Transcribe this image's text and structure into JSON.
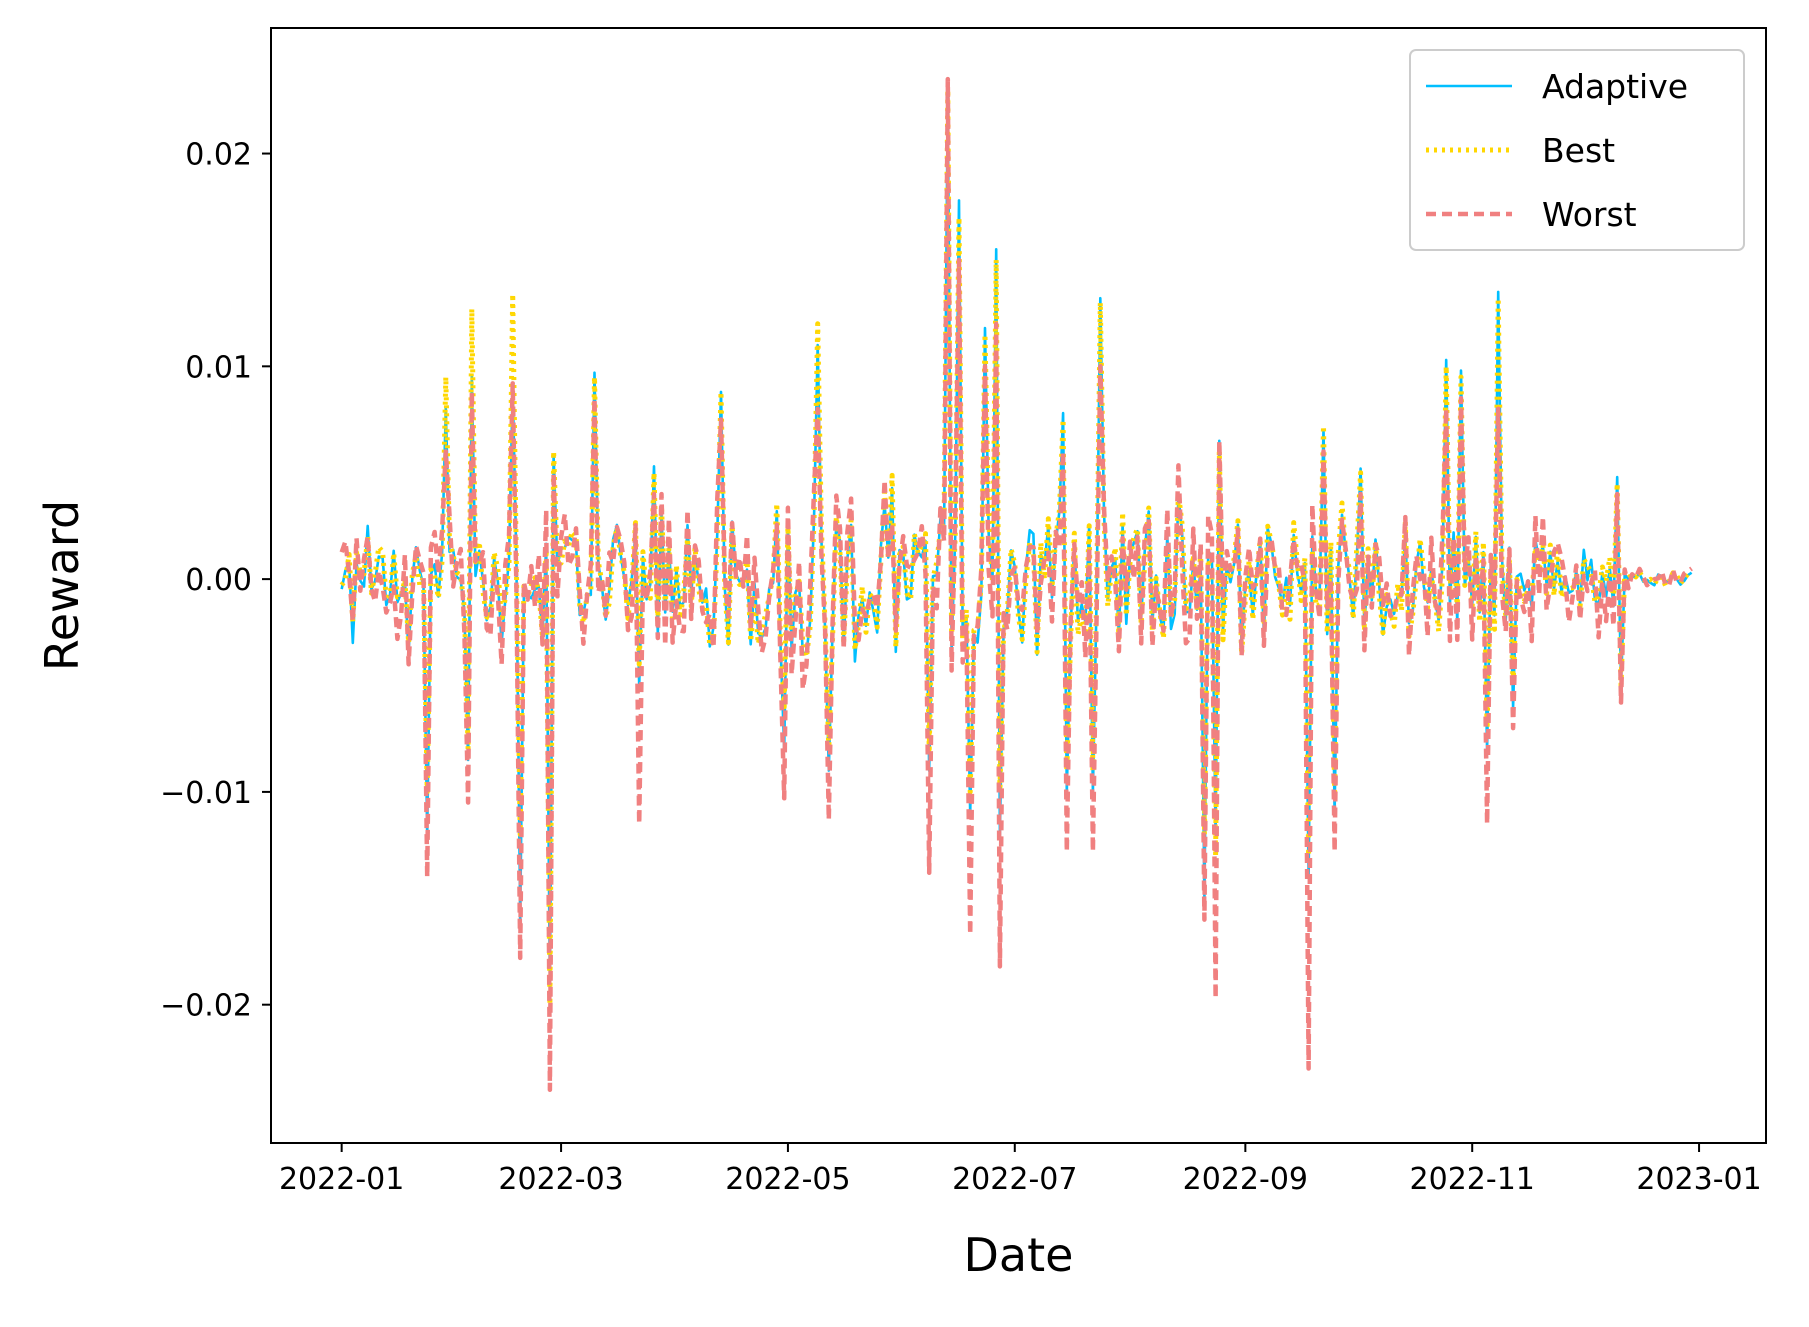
{
  "chart_data": {
    "type": "line",
    "title": "",
    "xlabel": "Date",
    "ylabel": "Reward",
    "xlim": [
      "2021-12-13",
      "2023-01-19"
    ],
    "ylim": [
      -0.0265,
      0.0259
    ],
    "grid": false,
    "legend_position": "top-right",
    "x_ticks": [
      "2022-01",
      "2022-03",
      "2022-05",
      "2022-07",
      "2022-09",
      "2022-11",
      "2023-01"
    ],
    "y_ticks": [
      0.02,
      0.01,
      0.0,
      -0.01,
      -0.02
    ],
    "y_tick_labels": [
      "0.02",
      "0.01",
      "0.00",
      "−0.01",
      "−0.02"
    ],
    "series": [
      {
        "name": "Adaptive",
        "color": "#00bfff",
        "style": "solid"
      },
      {
        "name": "Best",
        "color": "#ffd700",
        "style": "dotted"
      },
      {
        "name": "Worst",
        "color": "#f08080",
        "style": "dashed"
      }
    ],
    "x_start": "2022-01-01",
    "x_end": "2022-12-30",
    "peaks": [
      {
        "date": "2022-01-04",
        "adaptive": -0.003,
        "best": -0.002,
        "worst": -0.002
      },
      {
        "date": "2022-01-08",
        "adaptive": 0.0025,
        "best": 0.002,
        "worst": 0.002
      },
      {
        "date": "2022-01-19",
        "adaptive": -0.0035,
        "best": -0.003,
        "worst": -0.004
      },
      {
        "date": "2022-01-24",
        "adaptive": -0.012,
        "best": -0.01,
        "worst": -0.014
      },
      {
        "date": "2022-01-29",
        "adaptive": 0.008,
        "best": 0.0095,
        "worst": 0.006
      },
      {
        "date": "2022-02-04",
        "adaptive": -0.0085,
        "best": -0.008,
        "worst": -0.0105
      },
      {
        "date": "2022-02-05",
        "adaptive": 0.0095,
        "best": 0.0127,
        "worst": 0.0088
      },
      {
        "date": "2022-02-13",
        "adaptive": -0.003,
        "best": -0.002,
        "worst": -0.004
      },
      {
        "date": "2022-02-16",
        "adaptive": 0.009,
        "best": 0.0134,
        "worst": 0.0092
      },
      {
        "date": "2022-02-18",
        "adaptive": -0.016,
        "best": -0.012,
        "worst": -0.0178
      },
      {
        "date": "2022-02-26",
        "adaptive": -0.0195,
        "best": -0.02,
        "worst": -0.024
      },
      {
        "date": "2022-02-27",
        "adaptive": 0.0058,
        "best": 0.006,
        "worst": 0.005
      },
      {
        "date": "2022-03-10",
        "adaptive": 0.0097,
        "best": 0.0095,
        "worst": 0.0085
      },
      {
        "date": "2022-03-22",
        "adaptive": -0.005,
        "best": -0.004,
        "worst": -0.0115
      },
      {
        "date": "2022-03-26",
        "adaptive": 0.0053,
        "best": 0.005,
        "worst": 0.004
      },
      {
        "date": "2022-04-13",
        "adaptive": 0.0088,
        "best": 0.0088,
        "worst": 0.0075
      },
      {
        "date": "2022-04-30",
        "adaptive": -0.008,
        "best": -0.006,
        "worst": -0.0103
      },
      {
        "date": "2022-05-09",
        "adaptive": 0.011,
        "best": 0.012,
        "worst": 0.008
      },
      {
        "date": "2022-05-12",
        "adaptive": -0.009,
        "best": -0.008,
        "worst": -0.0113
      },
      {
        "date": "2022-06-08",
        "adaptive": -0.009,
        "best": -0.008,
        "worst": -0.0138
      },
      {
        "date": "2022-06-13",
        "adaptive": 0.023,
        "best": 0.023,
        "worst": 0.0235
      },
      {
        "date": "2022-06-16",
        "adaptive": 0.0178,
        "best": 0.017,
        "worst": 0.015
      },
      {
        "date": "2022-06-19",
        "adaptive": -0.011,
        "best": -0.01,
        "worst": -0.0167
      },
      {
        "date": "2022-06-23",
        "adaptive": 0.0118,
        "best": 0.0115,
        "worst": 0.01
      },
      {
        "date": "2022-06-26",
        "adaptive": 0.0155,
        "best": 0.015,
        "worst": 0.012
      },
      {
        "date": "2022-06-27",
        "adaptive": -0.012,
        "best": -0.01,
        "worst": -0.0182
      },
      {
        "date": "2022-07-14",
        "adaptive": 0.0078,
        "best": 0.0075,
        "worst": 0.006
      },
      {
        "date": "2022-07-15",
        "adaptive": -0.01,
        "best": -0.009,
        "worst": -0.0128
      },
      {
        "date": "2022-07-22",
        "adaptive": -0.01,
        "best": -0.009,
        "worst": -0.0128
      },
      {
        "date": "2022-07-24",
        "adaptive": 0.0132,
        "best": 0.013,
        "worst": 0.01
      },
      {
        "date": "2022-08-21",
        "adaptive": -0.015,
        "best": -0.012,
        "worst": -0.016
      },
      {
        "date": "2022-08-24",
        "adaptive": -0.012,
        "best": -0.013,
        "worst": -0.0197
      },
      {
        "date": "2022-08-25",
        "adaptive": 0.0065,
        "best": 0.006,
        "worst": 0.0065
      },
      {
        "date": "2022-09-18",
        "adaptive": -0.014,
        "best": -0.013,
        "worst": -0.023
      },
      {
        "date": "2022-09-22",
        "adaptive": 0.007,
        "best": 0.0072,
        "worst": 0.006
      },
      {
        "date": "2022-09-25",
        "adaptive": -0.011,
        "best": -0.01,
        "worst": -0.0128
      },
      {
        "date": "2022-10-02",
        "adaptive": 0.0052,
        "best": 0.005,
        "worst": 0.004
      },
      {
        "date": "2022-10-25",
        "adaptive": 0.0103,
        "best": 0.01,
        "worst": 0.008
      },
      {
        "date": "2022-10-29",
        "adaptive": 0.0098,
        "best": 0.0095,
        "worst": 0.0085
      },
      {
        "date": "2022-11-05",
        "adaptive": -0.008,
        "best": -0.007,
        "worst": -0.0115
      },
      {
        "date": "2022-11-08",
        "adaptive": 0.0135,
        "best": 0.0132,
        "worst": 0.008
      },
      {
        "date": "2022-11-12",
        "adaptive": -0.006,
        "best": -0.005,
        "worst": -0.007
      },
      {
        "date": "2022-12-10",
        "adaptive": 0.0048,
        "best": 0.0045,
        "worst": 0.004
      },
      {
        "date": "2022-12-11",
        "adaptive": -0.005,
        "best": -0.005,
        "worst": -0.0058
      },
      {
        "date": "2022-12-30",
        "adaptive": 0.0003,
        "best": 0.0003,
        "worst": 0.0005
      }
    ]
  }
}
